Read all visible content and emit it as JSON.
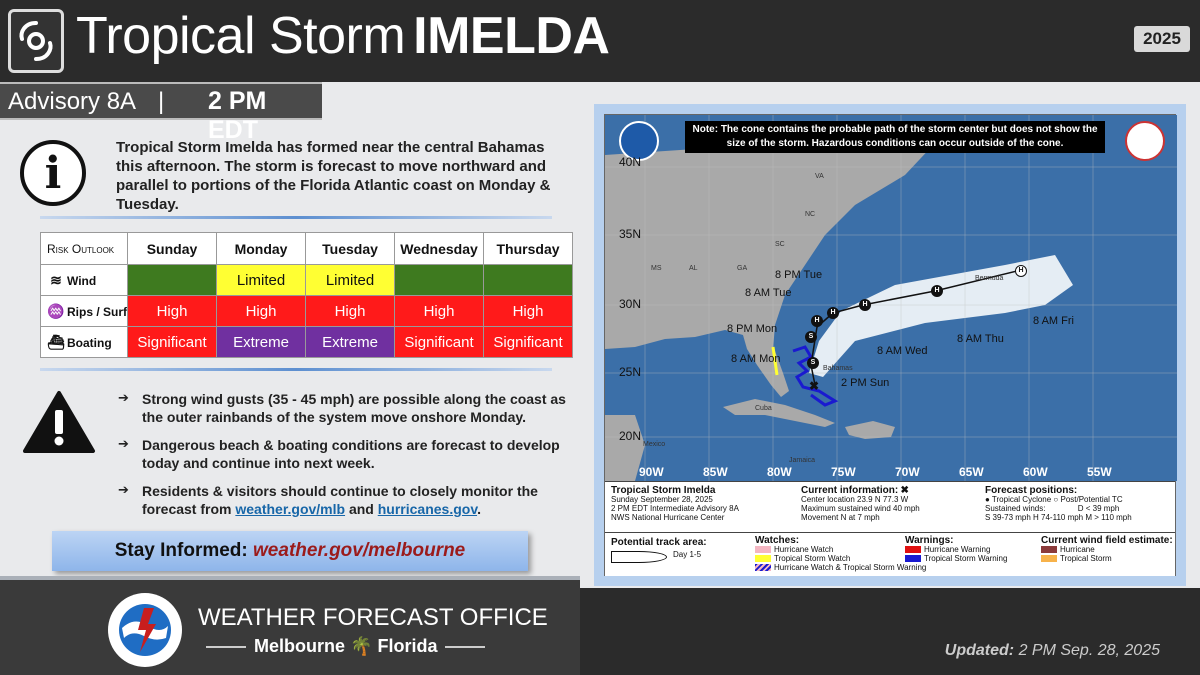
{
  "header": {
    "title_prefix": "Tropical Storm",
    "title_name": "IMELDA",
    "year": "2025",
    "advisory": "Advisory 8A",
    "separator": "|",
    "time": "2 PM EDT"
  },
  "intro": {
    "text": "Tropical Storm Imelda has formed near the central Bahamas this afternoon. The storm is forecast to move northward and parallel to portions of the Florida Atlantic coast on Monday & Tuesday."
  },
  "risk_outlook": {
    "label": "Risk Outlook",
    "days": [
      "Sunday",
      "Monday",
      "Tuesday",
      "Wednesday",
      "Thursday"
    ],
    "rows": [
      {
        "name": "Wind",
        "icon": "wind-icon",
        "cells": [
          {
            "text": "",
            "level": "green"
          },
          {
            "text": "Limited",
            "level": "yellow"
          },
          {
            "text": "Limited",
            "level": "yellow"
          },
          {
            "text": "",
            "level": "green"
          },
          {
            "text": "",
            "level": "green"
          }
        ]
      },
      {
        "name": "Rips / Surf",
        "icon": "swimmer-icon",
        "cells": [
          {
            "text": "High",
            "level": "red"
          },
          {
            "text": "High",
            "level": "red"
          },
          {
            "text": "High",
            "level": "red"
          },
          {
            "text": "High",
            "level": "red"
          },
          {
            "text": "High",
            "level": "red"
          }
        ]
      },
      {
        "name": "Boating",
        "icon": "boat-icon",
        "cells": [
          {
            "text": "Significant",
            "level": "red"
          },
          {
            "text": "Extreme",
            "level": "purple"
          },
          {
            "text": "Extreme",
            "level": "purple"
          },
          {
            "text": "Significant",
            "level": "red"
          },
          {
            "text": "Significant",
            "level": "red"
          }
        ]
      }
    ]
  },
  "bullets": {
    "b1": "Strong wind gusts (35 - 45 mph) are possible along the coast as the outer rainbands of the system move onshore Monday.",
    "b2": "Dangerous beach & boating conditions are forecast to develop today and continue into next week.",
    "b3_pre": "Residents & visitors should continue to closely monitor the forecast from ",
    "b3_link1": "weather.gov/mlb",
    "b3_mid": " and ",
    "b3_link2": "hurricanes.gov",
    "b3_post": "."
  },
  "stay_informed": {
    "label": "Stay Informed:",
    "link": "weather.gov/melbourne"
  },
  "footer": {
    "office": "WEATHER FORECAST OFFICE",
    "city": "Melbourne",
    "state": "Florida",
    "updated_label": "Updated:",
    "updated_value": "2 PM Sep. 28, 2025"
  },
  "map": {
    "note": "Note: The cone contains the probable path of the storm center but does not show the size of the storm. Hazardous conditions can occur outside of the cone.",
    "lat_labels": [
      "40N",
      "35N",
      "30N",
      "25N",
      "20N"
    ],
    "lon_labels": [
      "90W",
      "85W",
      "80W",
      "75W",
      "70W",
      "65W",
      "60W",
      "55W"
    ],
    "states": [
      "MS",
      "AL",
      "GA",
      "SC",
      "NC",
      "VA",
      "Bermuda",
      "Bahamas",
      "Cuba",
      "Mexico",
      "Jamaica"
    ],
    "times": [
      "2 PM Sun",
      "8 AM Mon",
      "8 PM Mon",
      "8 AM Tue",
      "8 PM Tue",
      "8 AM Wed",
      "8 AM Thu",
      "8 AM Fri"
    ],
    "point_codes": [
      "S",
      "S",
      "H",
      "H",
      "H",
      "H",
      "H"
    ],
    "legend": {
      "storm": "Tropical Storm Imelda",
      "date": "Sunday September 28, 2025",
      "advisory": "2 PM EDT Intermediate Advisory 8A",
      "center": "NWS National Hurricane Center",
      "current_title": "Current information:",
      "current_mark": "✖",
      "current_loc": "Center location 23.9 N 77.3 W",
      "current_wind": "Maximum sustained wind 40 mph",
      "current_move": "Movement N at 7 mph",
      "forecast_title": "Forecast positions:",
      "fp_tc": "Tropical Cyclone",
      "fp_post": "Post/Potential TC",
      "fp_sust": "Sustained winds:",
      "fp_d": "D < 39 mph",
      "fp_scale": "S 39-73 mph  H 74-110 mph  M > 110 mph",
      "track_title": "Potential track area:",
      "track_day": "Day 1-5",
      "watch_title": "Watches:",
      "watch_hur": "Hurricane Watch",
      "watch_ts": "Tropical Storm Watch",
      "watch_both": "Hurricane Watch & Tropical Storm Warning",
      "warn_title": "Warnings:",
      "warn_hur": "Hurricane Warning",
      "warn_ts": "Tropical Storm Warning",
      "wind_title": "Current wind field estimate:",
      "wind_hur": "Hurricane",
      "wind_ts": "Tropical Storm"
    }
  }
}
